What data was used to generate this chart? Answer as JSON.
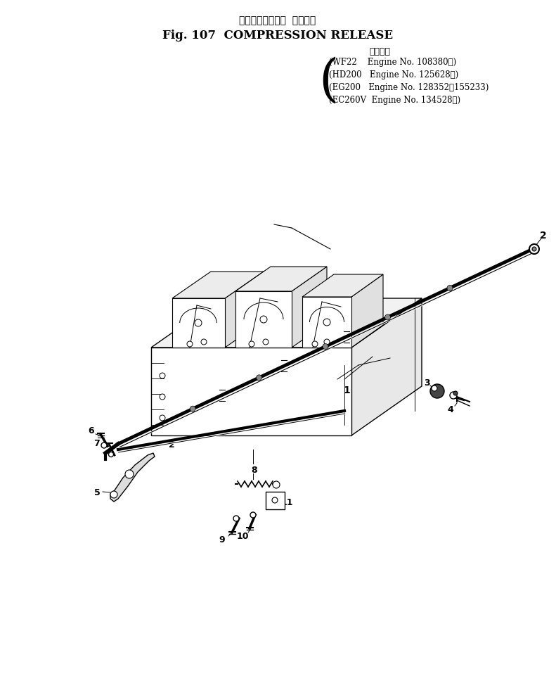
{
  "title_japanese": "コンプレッション  リリーズ",
  "title_english": "Fig. 107  COMPRESSION RELEASE",
  "applicable_header": "適用号機",
  "applicable_lines": [
    "(WF22    Engine No. 108380～)",
    "(HD200   Engine No. 125628～)",
    "(EG200   Engine No. 128352～155233)",
    "(EC260V  Engine No. 134528～)"
  ],
  "bg_color": "#ffffff",
  "line_color": "#000000",
  "fig_width": 7.91,
  "fig_height": 9.79
}
